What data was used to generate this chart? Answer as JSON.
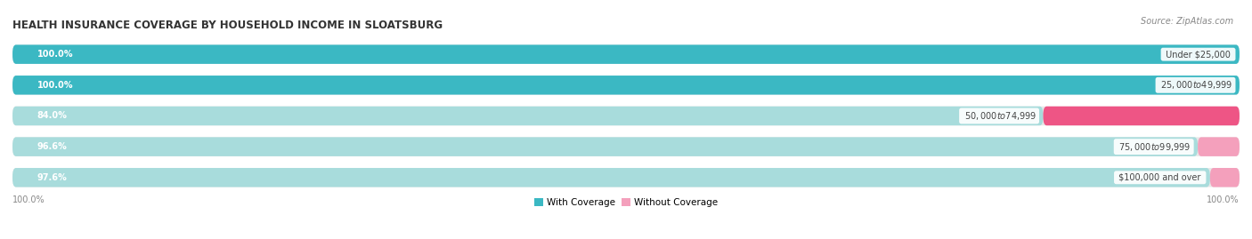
{
  "title": "HEALTH INSURANCE COVERAGE BY HOUSEHOLD INCOME IN SLOATSBURG",
  "source": "Source: ZipAtlas.com",
  "categories": [
    "Under $25,000",
    "$25,000 to $49,999",
    "$50,000 to $74,999",
    "$75,000 to $99,999",
    "$100,000 and over"
  ],
  "with_coverage": [
    100.0,
    100.0,
    84.0,
    96.6,
    97.6
  ],
  "without_coverage": [
    0.0,
    0.0,
    16.0,
    3.4,
    2.4
  ],
  "color_with_full": "#3BB8C3",
  "color_with_light": "#A8DCDC",
  "color_without_strong": "#EE5585",
  "color_without_light": "#F4A0BC",
  "background_bar": "#E8E8E8",
  "bar_height": 0.62,
  "legend_label_with": "With Coverage",
  "legend_label_without": "Without Coverage",
  "left_label": "100.0%",
  "right_label": "100.0%",
  "bg_color": "#FFFFFF",
  "total_width": 100.0
}
